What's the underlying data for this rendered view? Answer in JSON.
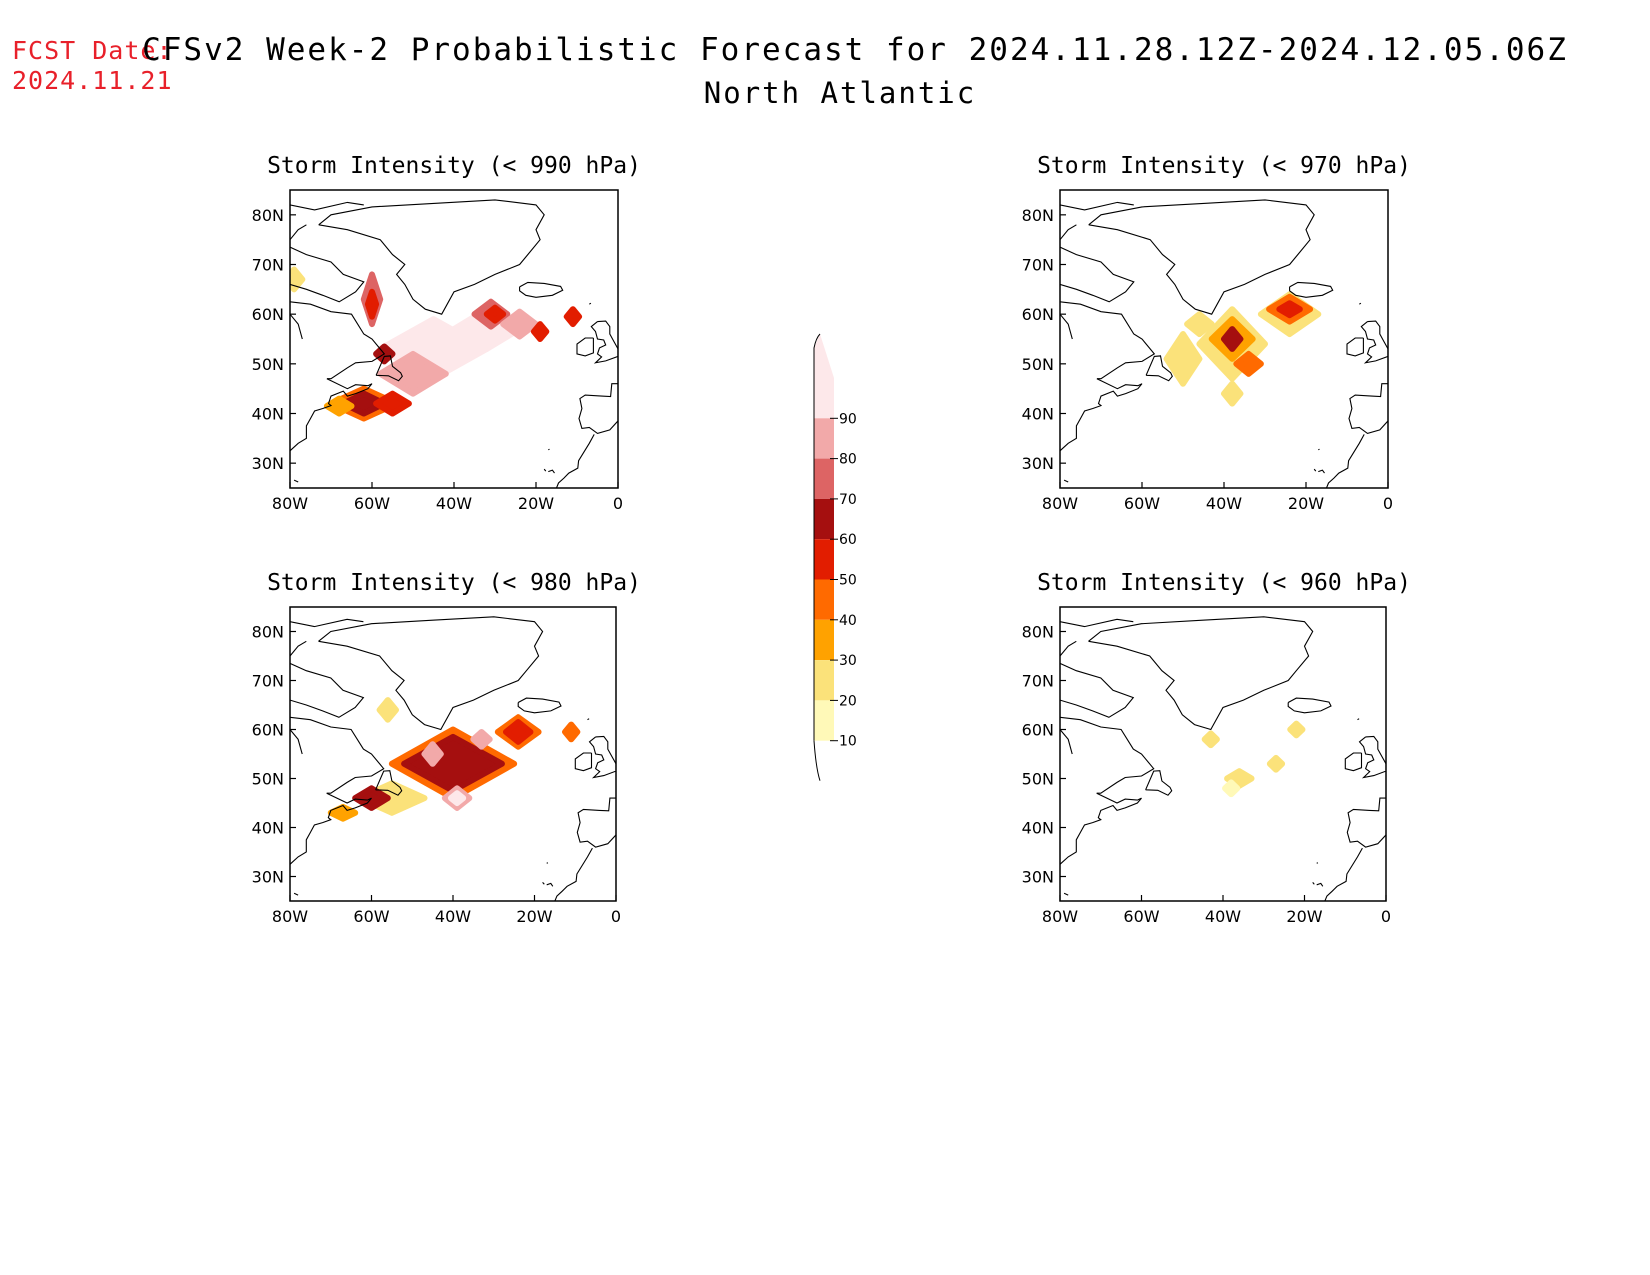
{
  "fcst_label": "FCST Date:",
  "fcst_date": "2024.11.21",
  "title": "CFSv2 Week-2 Probabilistic Forecast for 2024.11.28.12Z-2024.12.05.06Z",
  "subtitle": "North Atlantic",
  "colors": {
    "c10": "#fff9b8",
    "c20": "#fbe27a",
    "c30": "#ffa200",
    "c40": "#ff6a00",
    "c50": "#e21d00",
    "c60": "#a50f0f",
    "c70": "#dd6464",
    "c80": "#f2a9a9",
    "c90": "#fde8ea"
  },
  "colorbar": {
    "levels": [
      "10",
      "20",
      "30",
      "40",
      "50",
      "60",
      "70",
      "80",
      "90"
    ]
  },
  "x_ticks": [
    "80W",
    "60W",
    "40W",
    "20W",
    "0"
  ],
  "y_ticks": [
    "30N",
    "40N",
    "50N",
    "60N",
    "70N",
    "80N"
  ],
  "panels": [
    {
      "title": "Storm Intensity (< 990 hPa)",
      "threshold": "< 990 hPa",
      "blobs": [
        {
          "lon": -45,
          "lat": 53,
          "rx": 13,
          "ry": 6,
          "level": "c90"
        },
        {
          "lon": -32,
          "lat": 57,
          "rx": 8,
          "ry": 4,
          "level": "c90"
        },
        {
          "lon": -50,
          "lat": 48,
          "rx": 8,
          "ry": 4,
          "level": "c80"
        },
        {
          "lon": -31,
          "lat": 60,
          "rx": 4,
          "ry": 2.5,
          "level": "c70"
        },
        {
          "lon": -30,
          "lat": 60,
          "rx": 2,
          "ry": 1.3,
          "level": "c50"
        },
        {
          "lon": -24,
          "lat": 58,
          "rx": 4,
          "ry": 2.5,
          "level": "c80"
        },
        {
          "lon": -60,
          "lat": 63,
          "rx": 2,
          "ry": 5,
          "level": "c70"
        },
        {
          "lon": -60,
          "lat": 62,
          "rx": 1,
          "ry": 2.5,
          "level": "c50"
        },
        {
          "lon": -62,
          "lat": 42,
          "rx": 8,
          "ry": 3,
          "level": "c40"
        },
        {
          "lon": -62,
          "lat": 42,
          "rx": 5,
          "ry": 2,
          "level": "c60"
        },
        {
          "lon": -55,
          "lat": 42,
          "rx": 4,
          "ry": 2,
          "level": "c50"
        },
        {
          "lon": -68,
          "lat": 41.5,
          "rx": 3,
          "ry": 1.5,
          "level": "c30"
        },
        {
          "lon": -57,
          "lat": 52,
          "rx": 2,
          "ry": 1.5,
          "level": "c60"
        },
        {
          "lon": -79,
          "lat": 67,
          "rx": 2,
          "ry": 2,
          "level": "c20"
        },
        {
          "lon": -11,
          "lat": 59.5,
          "rx": 1.5,
          "ry": 1.5,
          "level": "c50"
        },
        {
          "lon": -19,
          "lat": 56.5,
          "rx": 1.5,
          "ry": 1.5,
          "level": "c50"
        }
      ]
    },
    {
      "title": "Storm Intensity (< 970 hPa)",
      "threshold": "< 970 hPa",
      "blobs": [
        {
          "lon": -50,
          "lat": 51,
          "rx": 4,
          "ry": 5,
          "level": "c20"
        },
        {
          "lon": -38,
          "lat": 54,
          "rx": 8,
          "ry": 7,
          "level": "c20"
        },
        {
          "lon": -38,
          "lat": 55,
          "rx": 5,
          "ry": 4,
          "level": "c30"
        },
        {
          "lon": -38,
          "lat": 55,
          "rx": 2,
          "ry": 2,
          "level": "c60"
        },
        {
          "lon": -24,
          "lat": 60,
          "rx": 7,
          "ry": 4,
          "level": "c20"
        },
        {
          "lon": -24,
          "lat": 61,
          "rx": 5,
          "ry": 2.5,
          "level": "c40"
        },
        {
          "lon": -24,
          "lat": 61,
          "rx": 2.5,
          "ry": 1.2,
          "level": "c50"
        },
        {
          "lon": -34,
          "lat": 50,
          "rx": 3,
          "ry": 2,
          "level": "c40"
        },
        {
          "lon": -38,
          "lat": 44,
          "rx": 2,
          "ry": 2,
          "level": "c20"
        },
        {
          "lon": -46,
          "lat": 58,
          "rx": 3,
          "ry": 2,
          "level": "c20"
        }
      ]
    },
    {
      "title": "Storm Intensity (< 980 hPa)",
      "threshold": "< 980 hPa",
      "blobs": [
        {
          "lon": -40,
          "lat": 53,
          "rx": 15,
          "ry": 7,
          "level": "c40"
        },
        {
          "lon": -40,
          "lat": 53,
          "rx": 12,
          "ry": 5.5,
          "level": "c60"
        },
        {
          "lon": -24,
          "lat": 59.5,
          "rx": 5,
          "ry": 3,
          "level": "c40"
        },
        {
          "lon": -24,
          "lat": 59.5,
          "rx": 3,
          "ry": 2,
          "level": "c50"
        },
        {
          "lon": -55,
          "lat": 46,
          "rx": 8,
          "ry": 3,
          "level": "c20"
        },
        {
          "lon": -60,
          "lat": 46,
          "rx": 4,
          "ry": 2,
          "level": "c60"
        },
        {
          "lon": -39,
          "lat": 46,
          "rx": 3,
          "ry": 2,
          "level": "c80"
        },
        {
          "lon": -39,
          "lat": 46,
          "rx": 1.5,
          "ry": 1,
          "level": "c90"
        },
        {
          "lon": -45,
          "lat": 55,
          "rx": 2,
          "ry": 2,
          "level": "c80"
        },
        {
          "lon": -33,
          "lat": 58,
          "rx": 2,
          "ry": 1.5,
          "level": "c80"
        },
        {
          "lon": -11,
          "lat": 59.5,
          "rx": 1.5,
          "ry": 1.5,
          "level": "c40"
        },
        {
          "lon": -67,
          "lat": 43,
          "rx": 3,
          "ry": 1.2,
          "level": "c30"
        },
        {
          "lon": -56,
          "lat": 64,
          "rx": 2,
          "ry": 2,
          "level": "c20"
        }
      ]
    },
    {
      "title": "Storm Intensity (< 960 hPa)",
      "threshold": "< 960 hPa",
      "blobs": [
        {
          "lon": -43,
          "lat": 58,
          "rx": 1.5,
          "ry": 1.2,
          "level": "c20"
        },
        {
          "lon": -22,
          "lat": 60,
          "rx": 1.5,
          "ry": 1.2,
          "level": "c20"
        },
        {
          "lon": -27,
          "lat": 53,
          "rx": 1.5,
          "ry": 1.2,
          "level": "c20"
        },
        {
          "lon": -36,
          "lat": 50,
          "rx": 3,
          "ry": 1.5,
          "level": "c20"
        },
        {
          "lon": -38,
          "lat": 48,
          "rx": 1.5,
          "ry": 1.2,
          "level": "c10"
        }
      ]
    }
  ]
}
